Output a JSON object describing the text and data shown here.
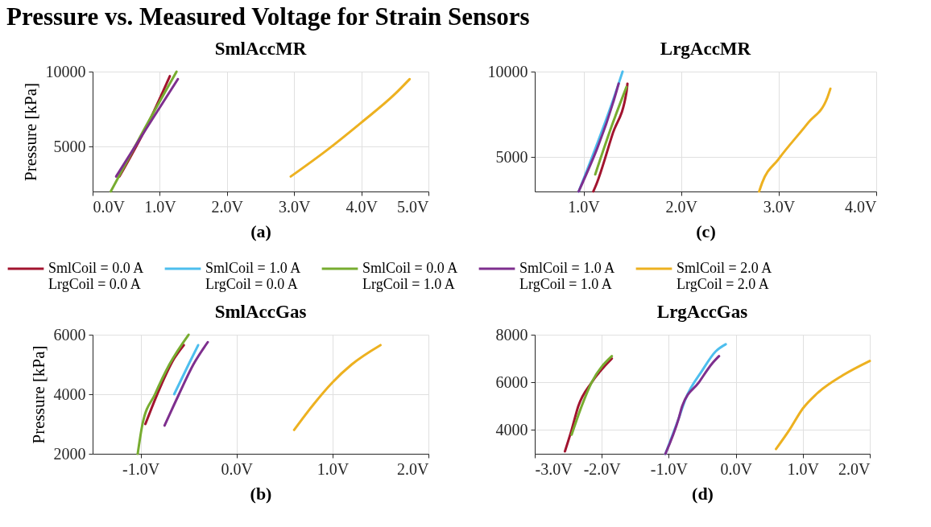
{
  "chart_data": [
    {
      "type": "line",
      "title": "SmlAccMR",
      "xlabel": "(a)",
      "ylabel": "Pressure [kPa]",
      "annotations": [
        "Pressure vs. Measured Voltage for Strain Sensors"
      ],
      "xlim": [
        0,
        5
      ],
      "ylim": [
        2000,
        10000
      ],
      "xticks": [
        {
          "value": 0,
          "label": "0.0V"
        },
        {
          "value": 1,
          "label": "1.0V"
        },
        {
          "value": 2,
          "label": "2.0V"
        },
        {
          "value": 3,
          "label": "3.0V"
        },
        {
          "value": 4,
          "label": "4.0V"
        },
        {
          "value": 5,
          "label": "5.0V"
        }
      ],
      "yticks": [
        5000,
        10000
      ],
      "grid": true,
      "legend": "bottom",
      "series": [
        {
          "name": "SmlCoil = 0.0 A\nLrgCoil = 0.0 A",
          "color": "#a2142f",
          "x": [
            0.4,
            0.8,
            1.15
          ],
          "values": [
            3000,
            6300,
            9700
          ]
        },
        {
          "name": "SmlCoil = 1.0 A\nLrgCoil = 0.0 A",
          "color": "#4dbeee"
        },
        {
          "name": "SmlCoil = 0.0 A\nLrgCoil = 1.0 A",
          "color": "#77ac30",
          "x": [
            0.27,
            0.75,
            1.25
          ],
          "values": [
            2000,
            6000,
            10000
          ]
        },
        {
          "name": "SmlCoil = 1.0 A\nLrgCoil = 1.0 A",
          "color": "#7e2f8e",
          "x": [
            0.35,
            0.8,
            1.27
          ],
          "values": [
            3000,
            6200,
            9500
          ]
        },
        {
          "name": "SmlCoil = 2.0 A\nLrgCoil = 2.0 A",
          "color": "#edb120",
          "x": [
            2.95,
            3.5,
            4.0,
            4.5,
            4.72
          ],
          "values": [
            3000,
            4800,
            6600,
            8500,
            9500
          ]
        }
      ]
    },
    {
      "type": "line",
      "title": "LrgAccMR",
      "xlabel": "(c)",
      "xlim": [
        0.5,
        4
      ],
      "ylim": [
        3000,
        10000
      ],
      "xticks": [
        {
          "value": 1,
          "label": "1.0V"
        },
        {
          "value": 2,
          "label": "2.0V"
        },
        {
          "value": 3,
          "label": "3.0V"
        },
        {
          "value": 4,
          "label": "4.0V"
        }
      ],
      "yticks": [
        5000,
        10000
      ],
      "grid": true,
      "series": [
        {
          "color": "#a2142f",
          "x": [
            1.1,
            1.13,
            1.3,
            1.44,
            1.45
          ],
          "values": [
            3000,
            3400,
            6400,
            8800,
            9300
          ]
        },
        {
          "color": "#4dbeee",
          "x": [
            0.95,
            1.36,
            1.4
          ],
          "values": [
            3000,
            9300,
            10000
          ]
        },
        {
          "color": "#77ac30",
          "x": [
            1.12,
            1.3,
            1.44
          ],
          "values": [
            4000,
            7000,
            9100
          ]
        },
        {
          "color": "#7e2f8e",
          "x": [
            0.95,
            1.33,
            1.36
          ],
          "values": [
            3000,
            8700,
            9300
          ]
        },
        {
          "color": "#edb120",
          "x": [
            2.8,
            2.83,
            3.0,
            3.3,
            3.5,
            3.53
          ],
          "values": [
            3000,
            3500,
            4900,
            7000,
            8500,
            9000
          ]
        }
      ]
    },
    {
      "type": "line",
      "title": "SmlAccGas",
      "xlabel": "(b)",
      "ylabel": "Pressure [kPa]",
      "xlim": [
        -1.5,
        2
      ],
      "ylim": [
        2000,
        6000
      ],
      "xticks": [
        {
          "value": -1,
          "label": "-1.0V"
        },
        {
          "value": 0,
          "label": "0.0V"
        },
        {
          "value": 1,
          "label": "1.0V"
        },
        {
          "value": 2,
          "label": "2.0V"
        }
      ],
      "yticks": [
        2000,
        4000,
        6000
      ],
      "grid": true,
      "series": [
        {
          "color": "#a2142f",
          "x": [
            -0.95,
            -0.8,
            -0.65,
            -0.55
          ],
          "values": [
            3000,
            4200,
            5200,
            5650
          ]
        },
        {
          "color": "#4dbeee",
          "x": [
            -0.65,
            -0.5,
            -0.4
          ],
          "values": [
            4000,
            5000,
            5650
          ]
        },
        {
          "color": "#77ac30",
          "x": [
            -1.03,
            -0.98,
            -0.85,
            -0.7,
            -0.5
          ],
          "values": [
            2000,
            3000,
            4000,
            5000,
            6000
          ]
        },
        {
          "color": "#7e2f8e",
          "x": [
            -0.75,
            -0.6,
            -0.45,
            -0.3
          ],
          "values": [
            2950,
            4000,
            5000,
            5750
          ]
        },
        {
          "color": "#edb120",
          "x": [
            0.6,
            0.8,
            1.0,
            1.2,
            1.5
          ],
          "values": [
            2800,
            3650,
            4400,
            5000,
            5650
          ]
        }
      ]
    },
    {
      "type": "line",
      "title": "LrgAccGas",
      "xlabel": "(d)",
      "xlim": [
        -3,
        2
      ],
      "ylim": [
        3000,
        8000
      ],
      "xticks": [
        {
          "value": -3,
          "label": "-3.0V"
        },
        {
          "value": -2,
          "label": "-2.0V"
        },
        {
          "value": -1,
          "label": "-1.0V"
        },
        {
          "value": 0,
          "label": "0.0V"
        },
        {
          "value": 1,
          "label": "1.0V"
        },
        {
          "value": 2,
          "label": "2.0V"
        }
      ],
      "yticks": [
        4000,
        6000,
        8000
      ],
      "grid": true,
      "series": [
        {
          "color": "#a2142f",
          "x": [
            -2.55,
            -2.45,
            -2.35,
            -2.15,
            -1.85
          ],
          "values": [
            3100,
            4000,
            5000,
            6000,
            7000
          ]
        },
        {
          "color": "#4dbeee",
          "x": [
            -1.05,
            -0.85,
            -0.75,
            -0.5,
            -0.3,
            -0.15
          ],
          "values": [
            3000,
            4500,
            5300,
            6500,
            7300,
            7600
          ]
        },
        {
          "color": "#77ac30",
          "x": [
            -2.45,
            -2.3,
            -2.15,
            -1.85
          ],
          "values": [
            3800,
            5000,
            6000,
            7100
          ]
        },
        {
          "color": "#7e2f8e",
          "x": [
            -1.05,
            -0.85,
            -0.8,
            -0.55,
            -0.35,
            -0.25
          ],
          "values": [
            3000,
            4500,
            5000,
            6000,
            6800,
            7100
          ]
        },
        {
          "color": "#edb120",
          "x": [
            0.6,
            0.8,
            1.0,
            1.2,
            1.6,
            2.0
          ],
          "values": [
            3200,
            4000,
            4900,
            5500,
            6300,
            6900
          ]
        }
      ]
    }
  ]
}
